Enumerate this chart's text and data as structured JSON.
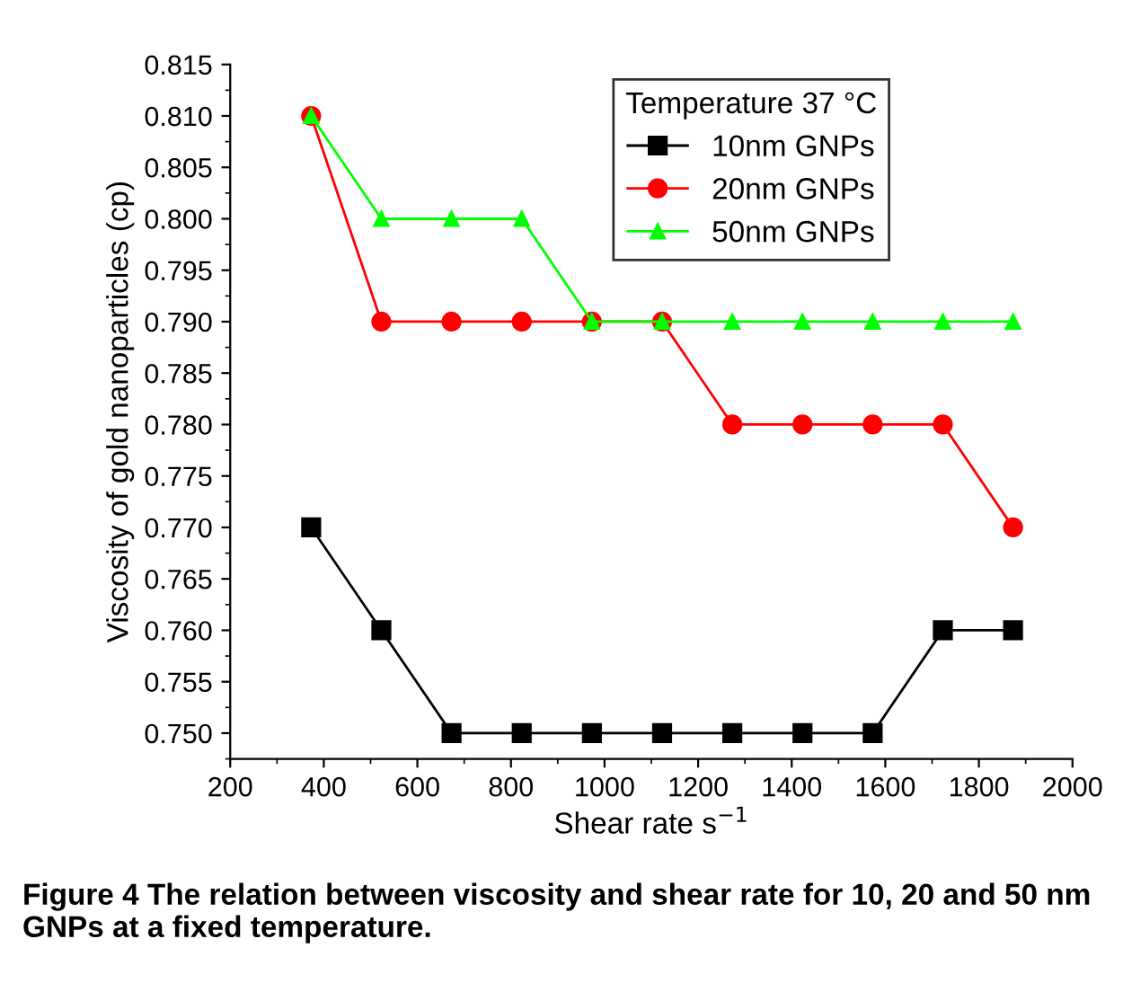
{
  "chart_data": {
    "type": "line",
    "x": [
      373,
      523,
      673,
      823,
      973,
      1123,
      1273,
      1423,
      1573,
      1723,
      1873
    ],
    "series": [
      {
        "name": "10nm GNPs",
        "color": "#000000",
        "marker": "square",
        "values": [
          0.77,
          0.76,
          0.75,
          0.75,
          0.75,
          0.75,
          0.75,
          0.75,
          0.75,
          0.76,
          0.76
        ]
      },
      {
        "name": "20nm GNPs",
        "color": "#ff0000",
        "marker": "circle",
        "values": [
          0.81,
          0.79,
          0.79,
          0.79,
          0.79,
          0.79,
          0.78,
          0.78,
          0.78,
          0.78,
          0.77
        ]
      },
      {
        "name": "50nm GNPs",
        "color": "#00ff00",
        "marker": "triangle",
        "values": [
          0.81,
          0.8,
          0.8,
          0.8,
          0.79,
          0.79,
          0.79,
          0.79,
          0.79,
          0.79,
          0.79
        ]
      }
    ],
    "xlabel": "Shear rate s$^{−1}$",
    "ylabel": "Viscosity of gold nanoparticles (cp)",
    "legend_title": "Temperature 37 °C",
    "legend": "top right",
    "xlim": [
      200,
      2000
    ],
    "xticks": [
      200,
      400,
      600,
      800,
      1000,
      1200,
      1400,
      1600,
      1800,
      2000
    ],
    "ylim": [
      0.7475,
      0.815
    ],
    "yticks": [
      {
        "value": 0.75,
        "label": "0.750"
      },
      {
        "value": 0.755,
        "label": "0.755"
      },
      {
        "value": 0.76,
        "label": "0.760"
      },
      {
        "value": 0.765,
        "label": "0.765"
      },
      {
        "value": 0.77,
        "label": "0.770"
      },
      {
        "value": 0.775,
        "label": "0.775"
      },
      {
        "value": 0.78,
        "label": "0.780"
      },
      {
        "value": 0.785,
        "label": "0.785"
      },
      {
        "value": 0.79,
        "label": "0.790"
      },
      {
        "value": 0.795,
        "label": "0.795"
      },
      {
        "value": 0.8,
        "label": "0.800"
      },
      {
        "value": 0.805,
        "label": "0.805"
      },
      {
        "value": 0.81,
        "label": "0.810"
      },
      {
        "value": 0.815,
        "label": "0.815"
      }
    ],
    "grid": false,
    "annotations": [
      "Figure 4 The relation between viscosity and shear rate for 10, 20 and 50 nm GNPs at a fixed temperature."
    ]
  }
}
